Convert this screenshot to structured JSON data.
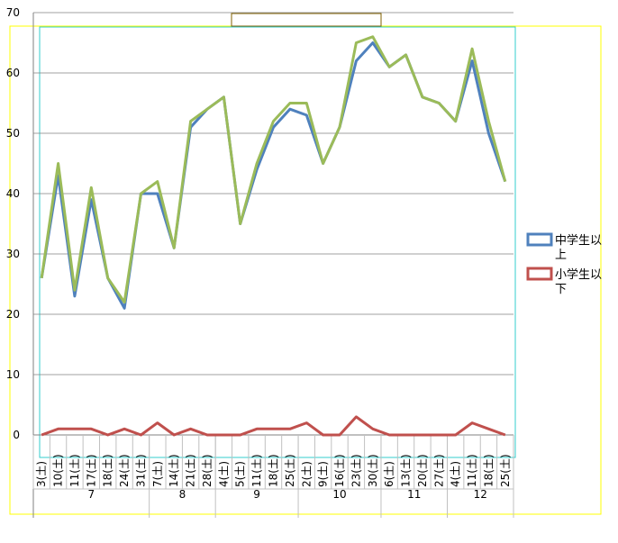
{
  "chart_data": {
    "type": "line",
    "title": "",
    "xlabel": "",
    "ylabel": "",
    "ylim": [
      0,
      70
    ],
    "yticks": [
      0,
      10,
      20,
      30,
      40,
      50,
      60,
      70
    ],
    "grid": true,
    "legend_position": "right",
    "categories": [
      "3(土)",
      "10(土)",
      "11(土)",
      "17(土)",
      "18(土)",
      "24(土)",
      "31(土)",
      "7(土)",
      "14(土)",
      "21(土)",
      "28(土)",
      "4(土)",
      "5(土)",
      "11(土)",
      "18(土)",
      "25(土)",
      "2(土)",
      "9(土)",
      "16(土)",
      "23(土)",
      "30(土)",
      "6(土)",
      "13(土)",
      "20(土)",
      "27(土)",
      "4(土)",
      "11(土)",
      "18(土)",
      "25(土)"
    ],
    "groups": [
      {
        "label": "7",
        "count": 7
      },
      {
        "label": "8",
        "count": 4
      },
      {
        "label": "9",
        "count": 5
      },
      {
        "label": "10",
        "count": 5
      },
      {
        "label": "11",
        "count": 4
      },
      {
        "label": "12",
        "count": 4
      }
    ],
    "series": [
      {
        "name": "中学生以上",
        "color": "#4f81bd",
        "values": [
          26,
          43,
          23,
          39,
          26,
          21,
          40,
          40,
          31,
          51,
          54,
          56,
          35,
          44,
          51,
          54,
          53,
          45,
          51,
          62,
          65,
          61,
          63,
          56,
          55,
          52,
          62,
          50,
          42
        ]
      },
      {
        "name": "",
        "color": "#9bbb59",
        "values": [
          26,
          45,
          24,
          41,
          26,
          22,
          40,
          42,
          31,
          52,
          54,
          56,
          35,
          45,
          52,
          55,
          55,
          45,
          51,
          65,
          66,
          61,
          63,
          56,
          55,
          52,
          64,
          52,
          42
        ]
      },
      {
        "name": "小学生以下",
        "color": "#c0504d",
        "values": [
          0,
          1,
          1,
          1,
          0,
          1,
          0,
          2,
          0,
          1,
          0,
          0,
          0,
          1,
          1,
          1,
          2,
          0,
          0,
          3,
          1,
          0,
          0,
          0,
          0,
          0,
          2,
          1,
          0
        ]
      }
    ]
  }
}
